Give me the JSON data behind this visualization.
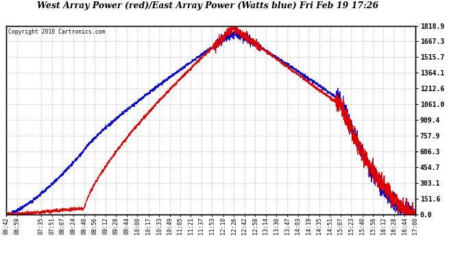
{
  "title": "West Array Power (red)/East Array Power (Watts blue) Fri Feb 19 17:26",
  "copyright": "Copyright 2010 Cartronics.com",
  "bg_color": "#ffffff",
  "plot_bg_color": "#ffffff",
  "grid_color": "#999999",
  "red_color": "#dd0000",
  "blue_color": "#0000cc",
  "ymin": 0.0,
  "ymax": 1818.9,
  "yticks": [
    0.0,
    151.6,
    303.1,
    454.7,
    606.3,
    757.9,
    909.4,
    1061.0,
    1212.6,
    1364.1,
    1515.7,
    1667.3,
    1818.9
  ],
  "xtick_labels": [
    "06:42",
    "06:59",
    "07:35",
    "07:51",
    "08:07",
    "08:24",
    "08:40",
    "08:56",
    "09:12",
    "09:28",
    "09:44",
    "10:00",
    "10:17",
    "10:33",
    "10:49",
    "11:05",
    "11:21",
    "11:37",
    "11:53",
    "12:10",
    "12:26",
    "12:42",
    "12:58",
    "13:14",
    "13:30",
    "13:47",
    "14:03",
    "14:19",
    "14:35",
    "14:51",
    "15:07",
    "15:23",
    "15:40",
    "15:56",
    "16:12",
    "16:28",
    "16:44",
    "17:00"
  ]
}
